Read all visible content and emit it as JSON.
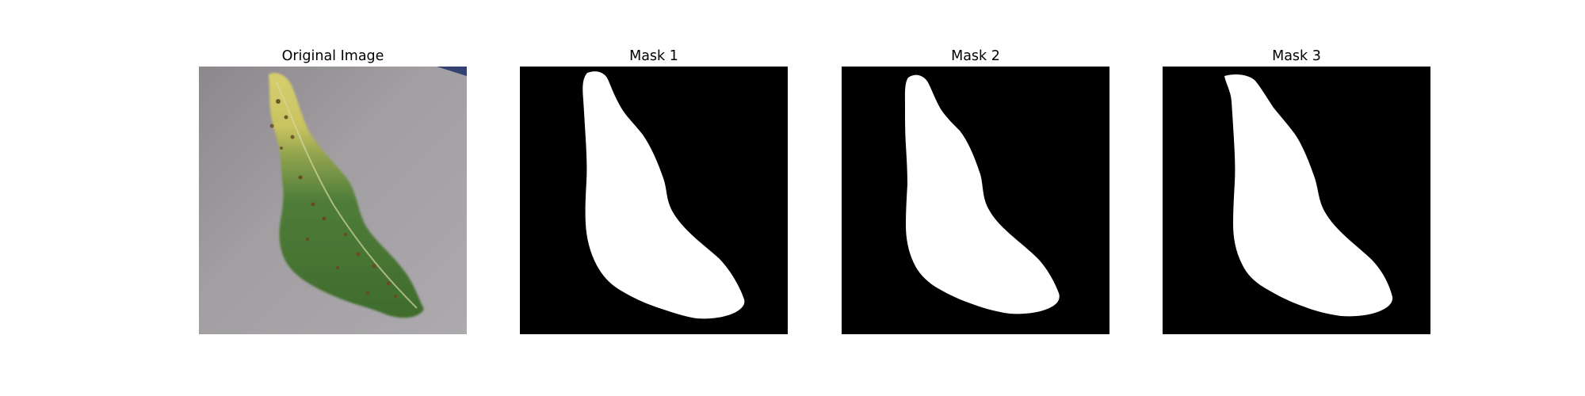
{
  "figure": {
    "panels": [
      {
        "title": "Original Image",
        "kind": "photo",
        "subject": "leaf"
      },
      {
        "title": "Mask 1",
        "kind": "mask"
      },
      {
        "title": "Mask 2",
        "kind": "mask"
      },
      {
        "title": "Mask 3",
        "kind": "mask"
      }
    ]
  },
  "colors": {
    "background": "#ffffff",
    "mask_background": "#000000",
    "mask_foreground": "#ffffff",
    "photo_background": "#a8a6a8",
    "leaf_green": "#4a7a3a",
    "leaf_yellow": "#c9c268"
  }
}
